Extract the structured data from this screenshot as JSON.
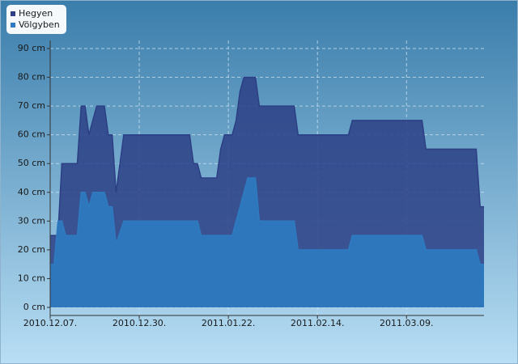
{
  "chart_data": {
    "type": "area",
    "x": [
      "2010.12.07.",
      "2010.12.08.",
      "2010.12.09.",
      "2010.12.10.",
      "2010.12.11.",
      "2010.12.14.",
      "2010.12.15.",
      "2010.12.16.",
      "2010.12.17.",
      "2010.12.18.",
      "2010.12.19.",
      "2010.12.21.",
      "2010.12.22.",
      "2010.12.23.",
      "2010.12.24.",
      "2010.12.26.",
      "2011.01.12.",
      "2011.01.13.",
      "2011.01.14.",
      "2011.01.15.",
      "2011.01.19.",
      "2011.01.20.",
      "2011.01.21.",
      "2011.01.23.",
      "2011.01.24.",
      "2011.01.25.",
      "2011.01.26.",
      "2011.01.27.",
      "2011.01.29.",
      "2011.01.30.",
      "2011.02.08.",
      "2011.02.09.",
      "2011.02.22.",
      "2011.02.23.",
      "2011.03.13.",
      "2011.03.14.",
      "2011.03.27.",
      "2011.03.28.",
      "2011.03.29."
    ],
    "series": [
      {
        "name": "Hegyen",
        "color": "#2c3f85",
        "values": [
          25,
          25,
          25,
          50,
          50,
          50,
          70,
          70,
          60,
          65,
          70,
          70,
          60,
          60,
          40,
          60,
          60,
          50,
          50,
          45,
          45,
          55,
          60,
          60,
          65,
          75,
          80,
          80,
          80,
          70,
          70,
          60,
          60,
          65,
          65,
          55,
          55,
          35,
          35
        ]
      },
      {
        "name": "Völgyben",
        "color": "#2e7bc1",
        "values": [
          15,
          15,
          30,
          30,
          25,
          25,
          40,
          40,
          35,
          40,
          40,
          40,
          35,
          35,
          22,
          30,
          30,
          30,
          30,
          25,
          25,
          25,
          25,
          25,
          30,
          35,
          40,
          45,
          45,
          30,
          30,
          20,
          20,
          25,
          25,
          20,
          20,
          15,
          15
        ]
      }
    ],
    "xlim": [
      "2010.12.07.",
      "2011.03.29."
    ],
    "xticks": [
      "2010.12.07.",
      "2010.12.30.",
      "2011.01.22.",
      "2011.02.14.",
      "2011.03.09."
    ],
    "ylim": [
      0,
      90
    ],
    "yticks": [
      {
        "value": 0,
        "label": "0 cm"
      },
      {
        "value": 10,
        "label": "10 cm"
      },
      {
        "value": 20,
        "label": "20 cm"
      },
      {
        "value": 30,
        "label": "30 cm"
      },
      {
        "value": 40,
        "label": "40 cm"
      },
      {
        "value": 50,
        "label": "50 cm"
      },
      {
        "value": 60,
        "label": "60 cm"
      },
      {
        "value": 70,
        "label": "70 cm"
      },
      {
        "value": 80,
        "label": "80 cm"
      },
      {
        "value": 90,
        "label": "90 cm"
      }
    ],
    "grid": true,
    "legend": "top-left"
  }
}
